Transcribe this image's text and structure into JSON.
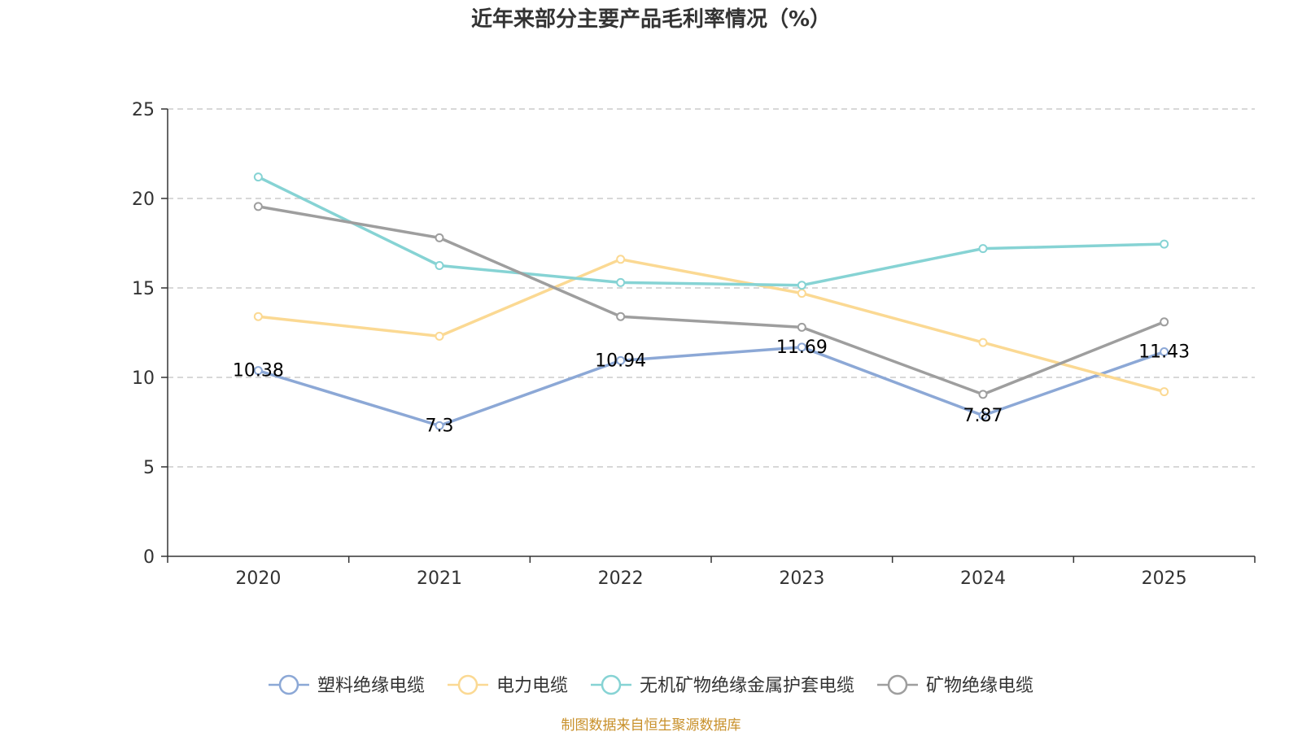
{
  "chart_data": {
    "type": "line",
    "title": "近年来部分主要产品毛利率情况（%）",
    "categories": [
      "2020",
      "2021",
      "2022",
      "2023",
      "2024",
      "2025"
    ],
    "ylim": [
      0,
      25
    ],
    "yticks": [
      "0",
      "5",
      "10",
      "15",
      "20",
      "25"
    ],
    "grid": true,
    "legend_position": "bottom",
    "series": [
      {
        "name": "塑料绝缘电缆",
        "color": "#8ca8d6",
        "values": [
          10.38,
          7.3,
          10.94,
          11.69,
          7.87,
          11.43
        ],
        "labels": [
          "10.38",
          "7.3",
          "10.94",
          "11.69",
          "7.87",
          "11.43"
        ]
      },
      {
        "name": "电力电缆",
        "color": "#fbd993",
        "values": [
          13.4,
          12.3,
          16.6,
          14.7,
          11.95,
          9.2
        ]
      },
      {
        "name": "无机矿物绝缘金属护套电缆",
        "color": "#86d3d4",
        "values": [
          21.2,
          16.25,
          15.3,
          15.15,
          17.2,
          17.45
        ]
      },
      {
        "name": "矿物绝缘电缆",
        "color": "#9e9e9e",
        "values": [
          19.55,
          17.8,
          13.4,
          12.8,
          9.05,
          13.1
        ]
      }
    ]
  },
  "source": {
    "text": "制图数据来自恒生聚源数据库",
    "color": "#c8902a"
  }
}
